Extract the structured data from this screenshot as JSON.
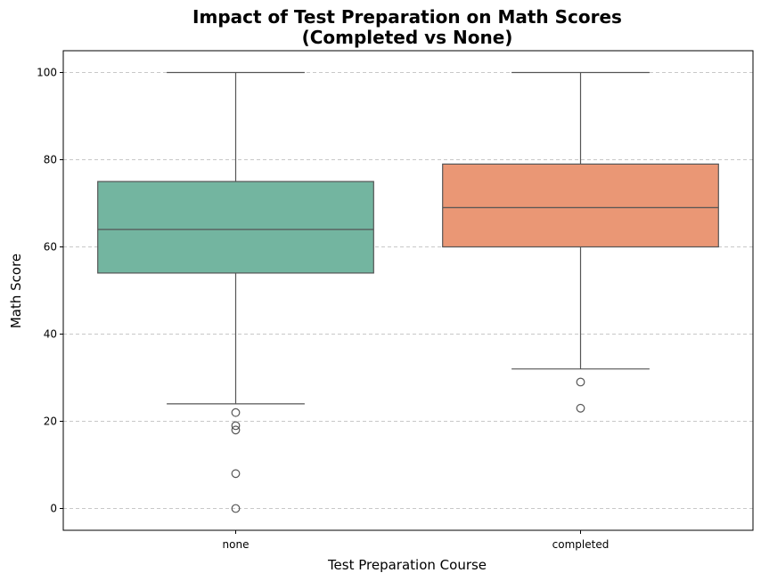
{
  "chart_data": {
    "type": "box",
    "title": "Impact of Test Preparation on Math Scores\n(Completed vs None)",
    "title_lines": [
      "Impact of Test Preparation on Math Scores",
      "(Completed vs None)"
    ],
    "xlabel": "Test Preparation Course",
    "ylabel": "Math Score",
    "ylim": [
      -5,
      105
    ],
    "yticks": [
      0,
      20,
      40,
      60,
      80,
      100
    ],
    "grid": "y dashed",
    "categories": [
      "none",
      "completed"
    ],
    "boxes": [
      {
        "category": "none",
        "color": "#73b5a0",
        "whisker_low": 24,
        "q1": 54,
        "median": 64,
        "q3": 75,
        "whisker_high": 100,
        "outliers": [
          22,
          19,
          18,
          8,
          0
        ]
      },
      {
        "category": "completed",
        "color": "#ea9775",
        "whisker_low": 32,
        "q1": 60,
        "median": 69,
        "q3": 79,
        "whisker_high": 100,
        "outliers": [
          29,
          23
        ]
      }
    ]
  }
}
